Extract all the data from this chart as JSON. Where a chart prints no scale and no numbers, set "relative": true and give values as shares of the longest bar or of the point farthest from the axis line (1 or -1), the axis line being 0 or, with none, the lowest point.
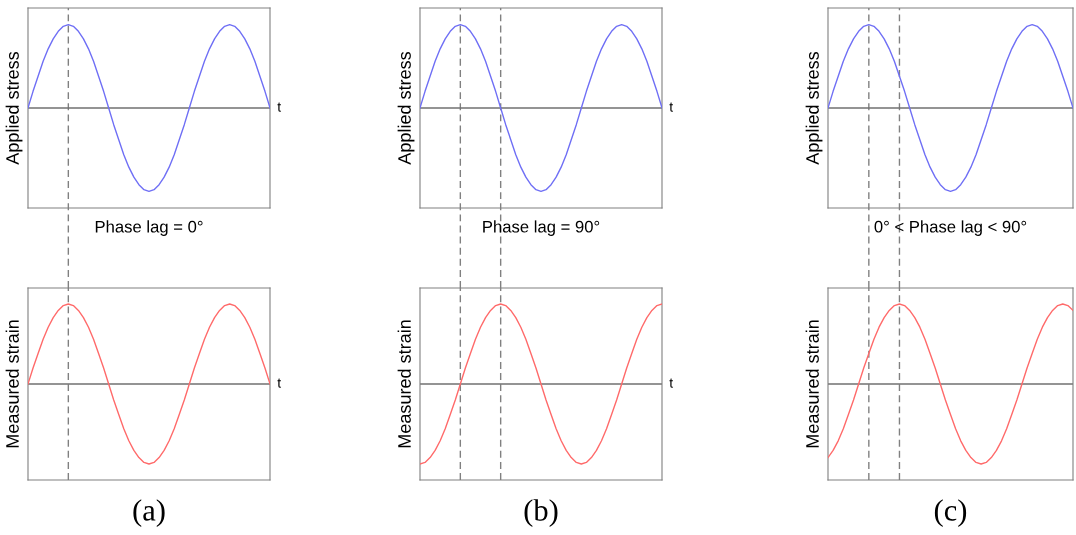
{
  "chart_data": [
    {
      "type": "line",
      "relative": true,
      "ylabel": "Applied stress",
      "xlabel": "t",
      "grid": false,
      "legend": false,
      "line_style": "solid",
      "marker": "none",
      "categories": [
        null,
        null,
        null,
        null,
        null,
        null,
        null,
        null,
        null,
        null,
        null,
        null,
        null,
        null,
        null,
        null,
        null,
        null,
        null,
        null,
        null,
        null,
        null,
        null,
        null,
        null,
        null,
        null,
        null,
        null,
        null,
        null,
        null,
        null,
        null,
        null,
        null,
        null,
        null,
        null,
        null,
        null,
        null,
        null,
        null,
        null,
        null,
        null,
        null
      ],
      "series": [
        {
          "color": "#6f6ff5",
          "values": [
            0,
            0.2,
            0.38,
            0.56,
            0.71,
            0.83,
            0.92,
            0.98,
            1,
            0.98,
            0.92,
            0.83,
            0.71,
            0.56,
            0.38,
            0.2,
            0,
            -0.2,
            -0.38,
            -0.56,
            -0.71,
            -0.83,
            -0.92,
            -0.98,
            -1,
            -0.98,
            -0.92,
            -0.83,
            -0.71,
            -0.56,
            -0.38,
            -0.2,
            0,
            0.2,
            0.38,
            0.56,
            0.71,
            0.83,
            0.92,
            0.98,
            1,
            0.98,
            0.92,
            0.83,
            0.71,
            0.56,
            0.38,
            0.2,
            0
          ]
        }
      ]
    },
    {
      "type": "line",
      "relative": true,
      "ylabel": "Applied stress",
      "xlabel": "t",
      "grid": false,
      "legend": false,
      "line_style": "solid",
      "marker": "none",
      "categories": [
        null,
        null,
        null,
        null,
        null,
        null,
        null,
        null,
        null,
        null,
        null,
        null,
        null,
        null,
        null,
        null,
        null,
        null,
        null,
        null,
        null,
        null,
        null,
        null,
        null,
        null,
        null,
        null,
        null,
        null,
        null,
        null,
        null,
        null,
        null,
        null,
        null,
        null,
        null,
        null,
        null,
        null,
        null,
        null,
        null,
        null,
        null,
        null,
        null
      ],
      "series": [
        {
          "color": "#6f6ff5",
          "values": [
            0,
            0.2,
            0.38,
            0.56,
            0.71,
            0.83,
            0.92,
            0.98,
            1,
            0.98,
            0.92,
            0.83,
            0.71,
            0.56,
            0.38,
            0.2,
            0,
            -0.2,
            -0.38,
            -0.56,
            -0.71,
            -0.83,
            -0.92,
            -0.98,
            -1,
            -0.98,
            -0.92,
            -0.83,
            -0.71,
            -0.56,
            -0.38,
            -0.2,
            0,
            0.2,
            0.38,
            0.56,
            0.71,
            0.83,
            0.92,
            0.98,
            1,
            0.98,
            0.92,
            0.83,
            0.71,
            0.56,
            0.38,
            0.2,
            0
          ]
        }
      ]
    },
    {
      "type": "line",
      "relative": true,
      "ylabel": "Applied stress",
      "grid": false,
      "legend": false,
      "line_style": "solid",
      "marker": "none",
      "categories": [
        null,
        null,
        null,
        null,
        null,
        null,
        null,
        null,
        null,
        null,
        null,
        null,
        null,
        null,
        null,
        null,
        null,
        null,
        null,
        null,
        null,
        null,
        null,
        null,
        null,
        null,
        null,
        null,
        null,
        null,
        null,
        null,
        null,
        null,
        null,
        null,
        null,
        null,
        null,
        null,
        null,
        null,
        null,
        null,
        null,
        null,
        null,
        null,
        null
      ],
      "series": [
        {
          "color": "#6f6ff5",
          "values": [
            0,
            0.2,
            0.38,
            0.56,
            0.71,
            0.83,
            0.92,
            0.98,
            1,
            0.98,
            0.92,
            0.83,
            0.71,
            0.56,
            0.38,
            0.2,
            0,
            -0.2,
            -0.38,
            -0.56,
            -0.71,
            -0.83,
            -0.92,
            -0.98,
            -1,
            -0.98,
            -0.92,
            -0.83,
            -0.71,
            -0.56,
            -0.38,
            -0.2,
            0,
            0.2,
            0.38,
            0.56,
            0.71,
            0.83,
            0.92,
            0.98,
            1,
            0.98,
            0.92,
            0.83,
            0.71,
            0.56,
            0.38,
            0.2,
            0
          ]
        }
      ]
    },
    {
      "type": "line",
      "relative": true,
      "title": "Phase lag = 0°",
      "ylabel": "Measured strain",
      "xlabel": "t",
      "grid": false,
      "legend": false,
      "line_style": "solid",
      "marker": "none",
      "annotations": [
        "(a)"
      ],
      "categories": [
        null,
        null,
        null,
        null,
        null,
        null,
        null,
        null,
        null,
        null,
        null,
        null,
        null,
        null,
        null,
        null,
        null,
        null,
        null,
        null,
        null,
        null,
        null,
        null,
        null,
        null,
        null,
        null,
        null,
        null,
        null,
        null,
        null,
        null,
        null,
        null,
        null,
        null,
        null,
        null,
        null,
        null,
        null,
        null,
        null,
        null,
        null,
        null,
        null
      ],
      "series": [
        {
          "color": "#ff6a6a",
          "values": [
            0,
            0.2,
            0.38,
            0.56,
            0.71,
            0.83,
            0.92,
            0.98,
            1,
            0.98,
            0.92,
            0.83,
            0.71,
            0.56,
            0.38,
            0.2,
            0,
            -0.2,
            -0.38,
            -0.56,
            -0.71,
            -0.83,
            -0.92,
            -0.98,
            -1,
            -0.98,
            -0.92,
            -0.83,
            -0.71,
            -0.56,
            -0.38,
            -0.2,
            0,
            0.2,
            0.38,
            0.56,
            0.71,
            0.83,
            0.92,
            0.98,
            1,
            0.98,
            0.92,
            0.83,
            0.71,
            0.56,
            0.38,
            0.2,
            0
          ]
        }
      ]
    },
    {
      "type": "line",
      "relative": true,
      "title": "Phase lag = 90°",
      "ylabel": "Measured strain",
      "xlabel": "t",
      "grid": false,
      "legend": false,
      "line_style": "solid",
      "marker": "none",
      "annotations": [
        "(b)"
      ],
      "categories": [
        null,
        null,
        null,
        null,
        null,
        null,
        null,
        null,
        null,
        null,
        null,
        null,
        null,
        null,
        null,
        null,
        null,
        null,
        null,
        null,
        null,
        null,
        null,
        null,
        null,
        null,
        null,
        null,
        null,
        null,
        null,
        null,
        null,
        null,
        null,
        null,
        null,
        null,
        null,
        null,
        null,
        null,
        null,
        null,
        null,
        null,
        null,
        null,
        null
      ],
      "series": [
        {
          "color": "#ff6a6a",
          "values": [
            -1,
            -0.98,
            -0.92,
            -0.83,
            -0.71,
            -0.56,
            -0.38,
            -0.2,
            0,
            0.2,
            0.38,
            0.56,
            0.71,
            0.83,
            0.92,
            0.98,
            1,
            0.98,
            0.92,
            0.83,
            0.71,
            0.56,
            0.38,
            0.2,
            0,
            -0.2,
            -0.38,
            -0.56,
            -0.71,
            -0.83,
            -0.92,
            -0.98,
            -1,
            -0.98,
            -0.92,
            -0.83,
            -0.71,
            -0.56,
            -0.38,
            -0.2,
            0,
            0.2,
            0.38,
            0.56,
            0.71,
            0.83,
            0.92,
            0.98,
            1
          ]
        }
      ]
    },
    {
      "type": "line",
      "relative": true,
      "title": "0° < Phase lag < 90°",
      "ylabel": "Measured strain",
      "grid": false,
      "legend": false,
      "line_style": "solid",
      "marker": "none",
      "annotations": [
        "(c)"
      ],
      "categories": [
        null,
        null,
        null,
        null,
        null,
        null,
        null,
        null,
        null,
        null,
        null,
        null,
        null,
        null,
        null,
        null,
        null,
        null,
        null,
        null,
        null,
        null,
        null,
        null,
        null,
        null,
        null,
        null,
        null,
        null,
        null,
        null,
        null,
        null,
        null,
        null,
        null,
        null,
        null,
        null,
        null,
        null,
        null,
        null,
        null,
        null,
        null,
        null,
        null
      ],
      "series": [
        {
          "color": "#ff6a6a",
          "values": [
            -0.92,
            -0.83,
            -0.71,
            -0.56,
            -0.38,
            -0.2,
            0,
            0.2,
            0.38,
            0.56,
            0.71,
            0.83,
            0.92,
            0.98,
            1,
            0.98,
            0.92,
            0.83,
            0.71,
            0.56,
            0.38,
            0.2,
            0,
            -0.2,
            -0.38,
            -0.56,
            -0.71,
            -0.83,
            -0.92,
            -0.98,
            -1,
            -0.98,
            -0.92,
            -0.83,
            -0.71,
            -0.56,
            -0.38,
            -0.2,
            0,
            0.2,
            0.38,
            0.56,
            0.71,
            0.83,
            0.92,
            0.98,
            1,
            0.98,
            0.92
          ]
        }
      ]
    }
  ]
}
